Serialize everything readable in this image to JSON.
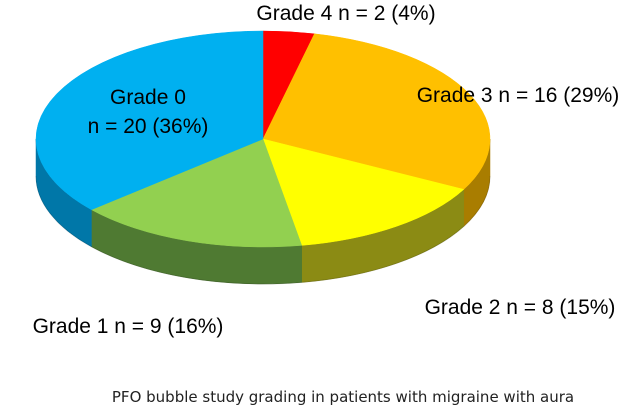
{
  "chart_data": {
    "type": "pie",
    "title": "",
    "caption": "PFO bubble study grading in patients with migraine with aura",
    "slices": [
      {
        "label_line1": "Grade 4 n = 2 (4%)",
        "label_line2": "",
        "count": 2,
        "percent": 4,
        "color": "#ff0000",
        "side_color": "#a30000"
      },
      {
        "label_line1": "Grade 3 n = 16 (29%)",
        "label_line2": "",
        "count": 16,
        "percent": 29,
        "color": "#ffc000",
        "side_color": "#a97d00"
      },
      {
        "label_line1": "Grade 2  n = 8 (15%)",
        "label_line2": "",
        "count": 8,
        "percent": 15,
        "color": "#ffff00",
        "side_color": "#8b8b14"
      },
      {
        "label_line1": "Grade 1 n = 9 (16%)",
        "label_line2": "",
        "count": 9,
        "percent": 16,
        "color": "#92d050",
        "side_color": "#4f7a32"
      },
      {
        "label_line1": "Grade 0",
        "label_line2": "n = 20 (36%)",
        "count": 20,
        "percent": 36,
        "color": "#00b0f0",
        "side_color": "#0077a8"
      }
    ]
  }
}
